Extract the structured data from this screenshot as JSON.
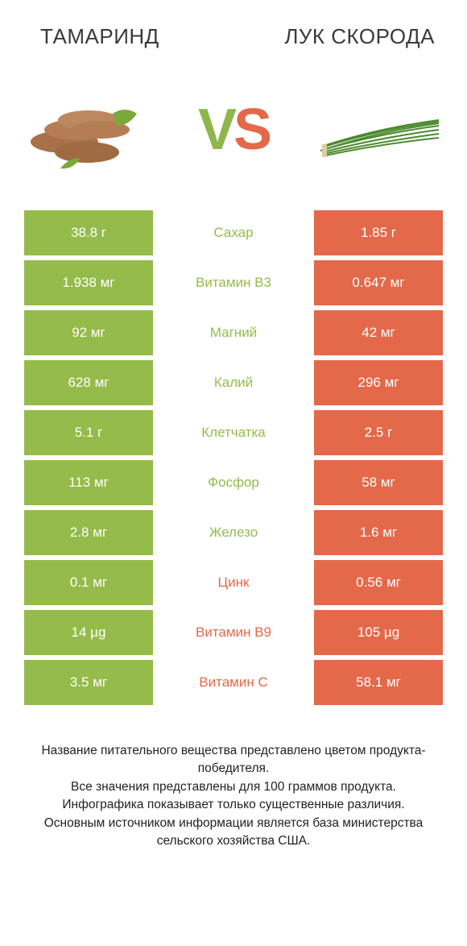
{
  "colors": {
    "green": "#95bb4a",
    "orange": "#e3694a",
    "text": "#3a3a3a",
    "background": "#ffffff"
  },
  "typography": {
    "header_fontsize": 26,
    "vs_fontsize": 72,
    "cell_fontsize": 17,
    "footer_fontsize": 15.5
  },
  "header": {
    "left": "ТАМАРИНД",
    "right": "ЛУК СКОРОДА"
  },
  "vs": {
    "v": "V",
    "s": "S"
  },
  "table": {
    "rows": [
      {
        "left": "38.8 г",
        "mid": "Сахар",
        "right": "1.85 г",
        "winner": "left"
      },
      {
        "left": "1.938 мг",
        "mid": "Витамин B3",
        "right": "0.647 мг",
        "winner": "left"
      },
      {
        "left": "92 мг",
        "mid": "Магний",
        "right": "42 мг",
        "winner": "left"
      },
      {
        "left": "628 мг",
        "mid": "Калий",
        "right": "296 мг",
        "winner": "left"
      },
      {
        "left": "5.1 г",
        "mid": "Клетчатка",
        "right": "2.5 г",
        "winner": "left"
      },
      {
        "left": "113 мг",
        "mid": "Фосфор",
        "right": "58 мг",
        "winner": "left"
      },
      {
        "left": "2.8 мг",
        "mid": "Железо",
        "right": "1.6 мг",
        "winner": "left"
      },
      {
        "left": "0.1 мг",
        "mid": "Цинк",
        "right": "0.56 мг",
        "winner": "right"
      },
      {
        "left": "14 µg",
        "mid": "Витамин B9",
        "right": "105 µg",
        "winner": "right"
      },
      {
        "left": "3.5 мг",
        "mid": "Витамин C",
        "right": "58.1 мг",
        "winner": "right"
      }
    ]
  },
  "footer": {
    "line1": "Название питательного вещества представлено цветом продукта-победителя.",
    "line2": "Все значения представлены для 100 граммов продукта.",
    "line3": "Инфографика показывает только существенные различия.",
    "line4": "Основным источником информации является база министерства сельского хозяйства США."
  }
}
